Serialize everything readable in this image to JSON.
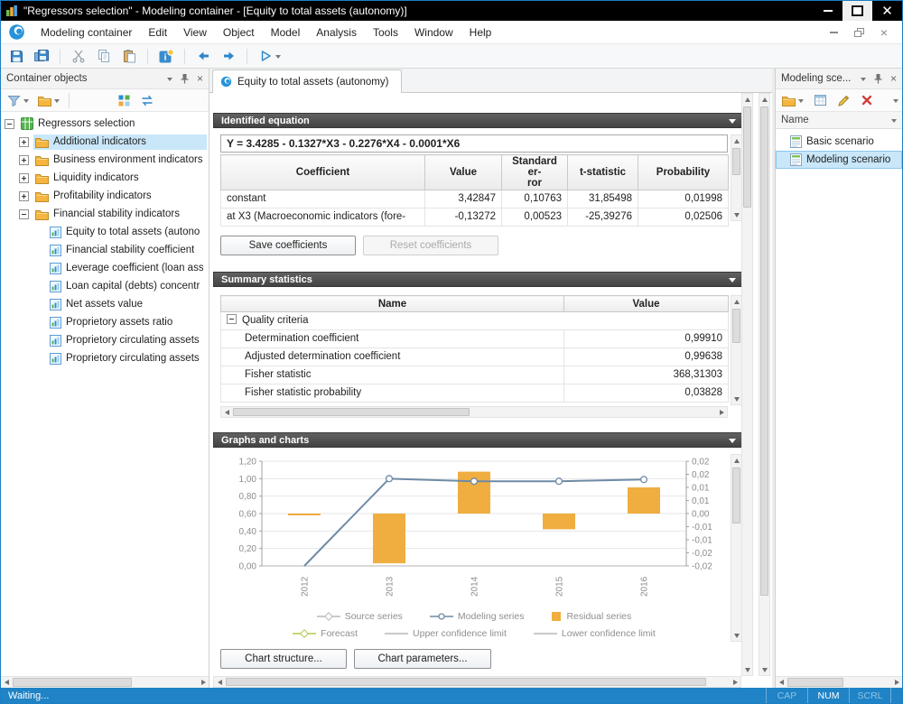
{
  "window": {
    "title": "\"Regressors selection\" - Modeling container - [Equity to total assets (autonomy)]",
    "status": "Waiting...",
    "status_indicators": [
      {
        "label": "CAP",
        "active": false
      },
      {
        "label": "NUM",
        "active": true
      },
      {
        "label": "SCRL",
        "active": false
      }
    ]
  },
  "menu": {
    "items": [
      "Modeling container",
      "Edit",
      "View",
      "Object",
      "Model",
      "Analysis",
      "Tools",
      "Window",
      "Help"
    ]
  },
  "left_panel": {
    "title": "Container objects",
    "tree": [
      {
        "label": "Regressors selection",
        "depth": 0,
        "icon": "model",
        "expander": "minus",
        "selected": false
      },
      {
        "label": "Additional indicators",
        "depth": 1,
        "icon": "folder",
        "expander": "plus",
        "selected": true
      },
      {
        "label": "Business environment indicators",
        "depth": 1,
        "icon": "folder",
        "expander": "plus",
        "selected": false
      },
      {
        "label": "Liquidity indicators",
        "depth": 1,
        "icon": "folder",
        "expander": "plus",
        "selected": false
      },
      {
        "label": "Profitability indicators",
        "depth": 1,
        "icon": "folder",
        "expander": "plus",
        "selected": false
      },
      {
        "label": "Financial stability indicators",
        "depth": 1,
        "icon": "folder",
        "expander": "minus",
        "selected": false
      },
      {
        "label": "Equity to total assets (autono",
        "depth": 2,
        "icon": "series",
        "expander": "none",
        "selected": false
      },
      {
        "label": "Financial stability coefficient",
        "depth": 2,
        "icon": "series",
        "expander": "none",
        "selected": false
      },
      {
        "label": "Leverage coefficient (loan ass",
        "depth": 2,
        "icon": "series",
        "expander": "none",
        "selected": false
      },
      {
        "label": "Loan capital (debts) concentr",
        "depth": 2,
        "icon": "series",
        "expander": "none",
        "selected": false
      },
      {
        "label": "Net assets value",
        "depth": 2,
        "icon": "series",
        "expander": "none",
        "selected": false
      },
      {
        "label": "Proprietory assets ratio",
        "depth": 2,
        "icon": "series",
        "expander": "none",
        "selected": false
      },
      {
        "label": "Proprietory circulating assets",
        "depth": 2,
        "icon": "series",
        "expander": "none",
        "selected": false
      },
      {
        "label": "Proprietory circulating assets",
        "depth": 2,
        "icon": "series",
        "expander": "none",
        "selected": false
      }
    ]
  },
  "right_panel": {
    "title": "Modeling sce...",
    "columns": {
      "name": "Name"
    },
    "scenarios": [
      {
        "label": "Basic scenario",
        "selected": false
      },
      {
        "label": "Modeling scenario",
        "selected": true
      }
    ]
  },
  "tab": {
    "label": "Equity to total assets (autonomy)"
  },
  "identified_equation": {
    "title": "Identified equation",
    "formula": "Y = 3.4285 - 0.1327*X3 - 0.2276*X4 - 0.0001*X6",
    "table": {
      "headers": [
        "Coefficient",
        "Value",
        "Standard er-\nror",
        "t-statistic",
        "Probability"
      ],
      "rows": [
        [
          "constant",
          "3,42847",
          "0,10763",
          "31,85498",
          "0,01998"
        ],
        [
          "at X3 (Macroeconomic indicators (fore-",
          "-0,13272",
          "0,00523",
          "-25,39276",
          "0,02506"
        ]
      ]
    },
    "save_button": "Save coefficients",
    "reset_button": "Reset coefficients"
  },
  "summary_statistics": {
    "title": "Summary statistics",
    "headers": [
      "Name",
      "Value"
    ],
    "group": "Quality criteria",
    "rows": [
      [
        "Determination coefficient",
        "0,99910"
      ],
      [
        "Adjusted determination coefficient",
        "0,99638"
      ],
      [
        "Fisher statistic",
        "368,31303"
      ],
      [
        "Fisher statistic probability",
        "0,03828"
      ]
    ]
  },
  "graphs": {
    "title": "Graphs and charts",
    "structure_button": "Chart structure...",
    "parameters_button": "Chart parameters..."
  },
  "chart_data": {
    "type": "line+bar",
    "categories": [
      "2012",
      "2013",
      "2014",
      "2015",
      "2016"
    ],
    "series": [
      {
        "name": "Modeling series",
        "type": "line",
        "axis": "left",
        "color": "#6e8aa6",
        "values": [
          0.0,
          1.0,
          0.97,
          0.97,
          0.99
        ]
      },
      {
        "name": "Residual series",
        "type": "bar",
        "axis": "right",
        "color": "#efae3f",
        "values": [
          0.0,
          -0.019,
          0.016,
          -0.006,
          0.01
        ]
      }
    ],
    "left_axis": {
      "min": 0.0,
      "max": 1.2,
      "ticks": [
        "1,20",
        "1,00",
        "0,80",
        "0,60",
        "0,40",
        "0,20",
        "0,00"
      ]
    },
    "right_axis": {
      "min": -0.02,
      "max": 0.02,
      "ticks": [
        "0,02",
        "0,02",
        "0,01",
        "0,01",
        "0,00",
        "-0,01",
        "-0,01",
        "-0,02",
        "-0,02"
      ]
    },
    "legend": [
      {
        "label": "Source series",
        "color": "#b9b9b9",
        "marker": "diamond"
      },
      {
        "label": "Modeling series",
        "color": "#6e8aa6",
        "marker": "circle"
      },
      {
        "label": "Residual series",
        "color": "#efae3f",
        "marker": "square"
      },
      {
        "label": "Forecast",
        "color": "#b5c94d",
        "marker": "diamond"
      },
      {
        "label": "Upper confidence limit",
        "color": "#b9b9b9",
        "marker": "line"
      },
      {
        "label": "Lower confidence limit",
        "color": "#b9b9b9",
        "marker": "line"
      }
    ],
    "grid": true,
    "legend_position": "bottom"
  },
  "colors": {
    "accent": "#1f83c6",
    "selection": "#c9e7f9",
    "section_header": "#4a4a4a",
    "residual_bar": "#efae3f",
    "modeling_line": "#6e8aa6",
    "status_bar": "#1f83c6"
  }
}
